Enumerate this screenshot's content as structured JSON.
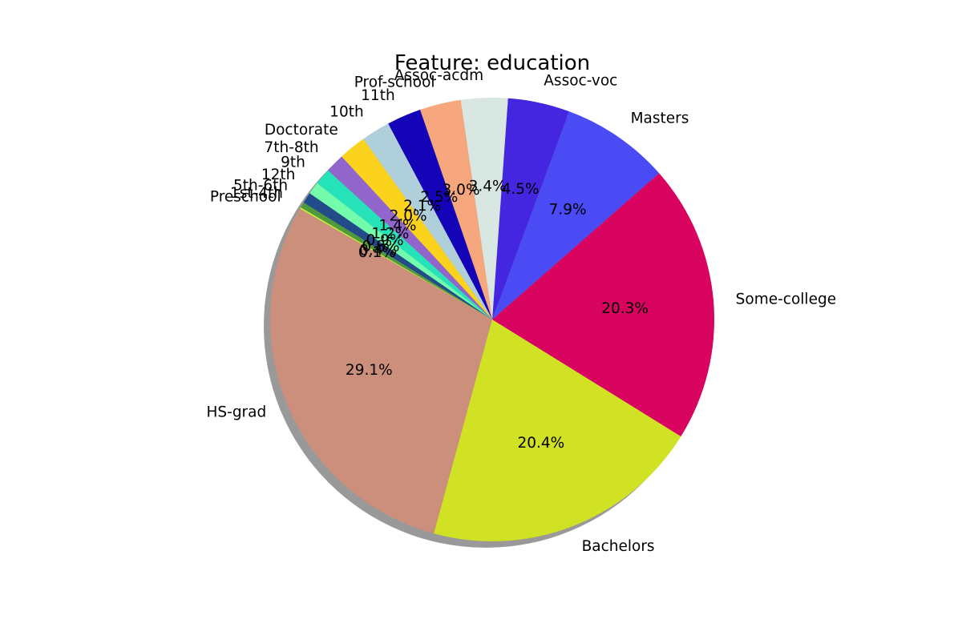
{
  "chart_data": {
    "type": "pie",
    "title": "Feature: education",
    "shadow": true,
    "start_angle_deg": 150,
    "direction": "counterclockwise",
    "slices": [
      {
        "label": "HS-grad",
        "value": 29.1,
        "pct_label": "29.1%",
        "color": "#cc8f7b"
      },
      {
        "label": "Bachelors",
        "value": 20.4,
        "pct_label": "20.4%",
        "color": "#d1e123"
      },
      {
        "label": "Some-college",
        "value": 20.3,
        "pct_label": "20.3%",
        "color": "#d9045f"
      },
      {
        "label": "Masters",
        "value": 7.9,
        "pct_label": "7.9%",
        "color": "#4a4bf5"
      },
      {
        "label": "Assoc-voc",
        "value": 4.5,
        "pct_label": "4.5%",
        "color": "#4526e0"
      },
      {
        "label": "Assoc-acdm",
        "value": 3.4,
        "pct_label": "3.4%",
        "color": "#d8e7e1"
      },
      {
        "label": "Prof-school",
        "value": 3.0,
        "pct_label": "3.0%",
        "color": "#f7a77d"
      },
      {
        "label": "11th",
        "value": 2.5,
        "pct_label": "2.5%",
        "color": "#1503b8"
      },
      {
        "label": "10th",
        "value": 2.1,
        "pct_label": "2.1%",
        "color": "#afcfdb"
      },
      {
        "label": "Doctorate",
        "value": 2.0,
        "pct_label": "2.0%",
        "color": "#fbd21c"
      },
      {
        "label": "7th-8th",
        "value": 1.4,
        "pct_label": "1.4%",
        "color": "#9265cc"
      },
      {
        "label": "9th",
        "value": 1.2,
        "pct_label": "1.2%",
        "color": "#25e2b8"
      },
      {
        "label": "12th",
        "value": 0.9,
        "pct_label": "0.9%",
        "color": "#72fcac"
      },
      {
        "label": "5th-6th",
        "value": 0.8,
        "pct_label": "0.8%",
        "color": "#214c89"
      },
      {
        "label": "1st-4th",
        "value": 0.4,
        "pct_label": "0.4%",
        "color": "#4e9a3a"
      },
      {
        "label": "Preschool",
        "value": 0.1,
        "pct_label": "0.1%",
        "color": "#c6f035"
      }
    ]
  }
}
